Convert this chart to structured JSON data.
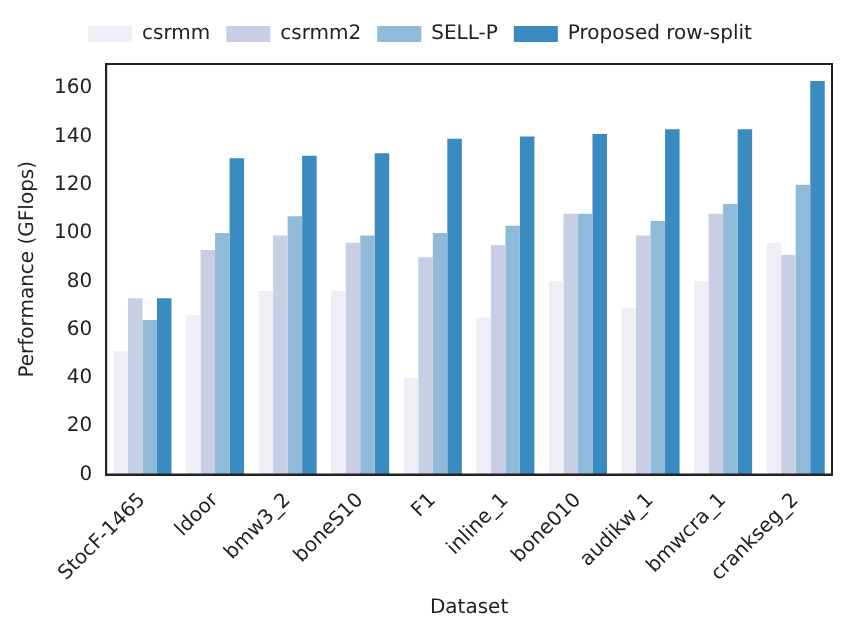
{
  "chart_data": {
    "type": "bar",
    "xlabel": "Dataset",
    "ylabel": "Performance (GFlops)",
    "categories": [
      "StocF-1465",
      "ldoor",
      "bmw3_2",
      "boneS10",
      "F1",
      "inline_1",
      "bone010",
      "audikw_1",
      "bmwcra_1",
      "crankseg_2"
    ],
    "series": [
      {
        "name": "csrmm",
        "color": "#efedf5",
        "values": [
          51,
          66,
          76,
          76,
          40,
          65,
          80,
          69,
          80,
          96
        ]
      },
      {
        "name": "csrmm2",
        "color": "#c8cee3",
        "values": [
          73,
          93,
          99,
          96,
          90,
          95,
          108,
          99,
          108,
          91
        ]
      },
      {
        "name": "SELL-P",
        "color": "#8fbad9",
        "values": [
          64,
          100,
          107,
          99,
          100,
          103,
          108,
          105,
          112,
          120
        ]
      },
      {
        "name": "Proposed row-split",
        "color": "#3a8bc0",
        "values": [
          73,
          131,
          132,
          133,
          139,
          140,
          141,
          143,
          143,
          163
        ]
      }
    ],
    "ylim": [
      0,
      170
    ],
    "yticks": [
      0,
      20,
      40,
      60,
      80,
      100,
      120,
      140,
      160
    ],
    "grid": false,
    "legend": "top"
  }
}
